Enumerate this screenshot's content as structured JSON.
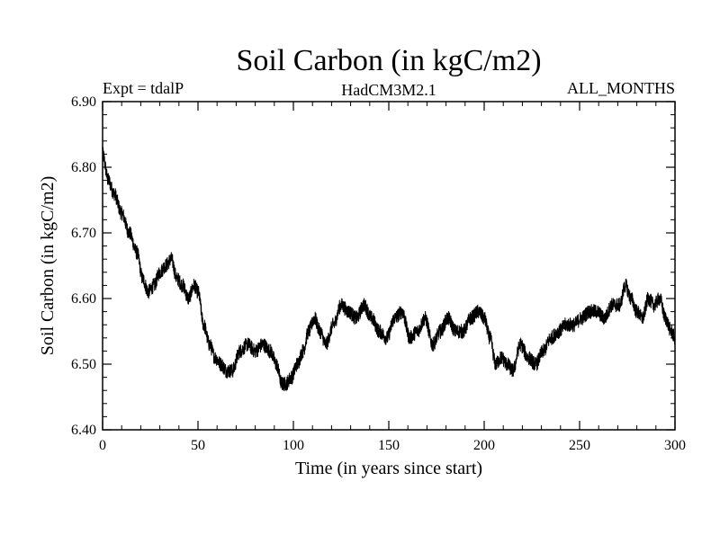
{
  "chart_data": {
    "type": "line",
    "title": "Soil Carbon (in kgC/m2)",
    "subtitle_left": "Expt = tdalP",
    "subtitle_center": "HadCM3M2.1",
    "subtitle_right": "ALL_MONTHS",
    "xlabel": "Time (in years since start)",
    "ylabel": "Soil Carbon (in kgC/m2)",
    "xlim": [
      0,
      300
    ],
    "ylim": [
      6.4,
      6.9
    ],
    "x_ticks": [
      "0",
      "50",
      "100",
      "150",
      "200",
      "250",
      "300"
    ],
    "y_ticks": [
      "6.40",
      "6.50",
      "6.60",
      "6.70",
      "6.80",
      "6.90"
    ],
    "grid": false,
    "series": [
      {
        "name": "Soil Carbon",
        "color": "#000000",
        "x": [
          0,
          3,
          6,
          10,
          14,
          18,
          21,
          24,
          27,
          30,
          33,
          36,
          39,
          42,
          45,
          48,
          50,
          53,
          56,
          59,
          62,
          65,
          68,
          72,
          76,
          80,
          84,
          88,
          91,
          94,
          96,
          99,
          102,
          105,
          108,
          111,
          114,
          117,
          121,
          125,
          129,
          133,
          137,
          141,
          145,
          149,
          153,
          157,
          161,
          165,
          169,
          173,
          177,
          181,
          185,
          189,
          193,
          197,
          200,
          203,
          206,
          209,
          212,
          215,
          219,
          223,
          227,
          231,
          235,
          239,
          243,
          247,
          251,
          255,
          259,
          263,
          267,
          271,
          274,
          277,
          280,
          283,
          286,
          289,
          292,
          295,
          298,
          300
        ],
        "values": [
          6.82,
          6.78,
          6.76,
          6.73,
          6.7,
          6.67,
          6.63,
          6.61,
          6.62,
          6.64,
          6.65,
          6.66,
          6.63,
          6.62,
          6.6,
          6.62,
          6.61,
          6.56,
          6.53,
          6.51,
          6.5,
          6.49,
          6.49,
          6.52,
          6.53,
          6.52,
          6.53,
          6.52,
          6.5,
          6.47,
          6.47,
          6.48,
          6.5,
          6.52,
          6.55,
          6.57,
          6.55,
          6.53,
          6.56,
          6.59,
          6.58,
          6.57,
          6.59,
          6.57,
          6.55,
          6.54,
          6.57,
          6.58,
          6.54,
          6.55,
          6.57,
          6.53,
          6.55,
          6.57,
          6.55,
          6.55,
          6.57,
          6.58,
          6.57,
          6.54,
          6.5,
          6.51,
          6.5,
          6.49,
          6.53,
          6.51,
          6.5,
          6.52,
          6.54,
          6.55,
          6.56,
          6.56,
          6.57,
          6.58,
          6.58,
          6.57,
          6.59,
          6.59,
          6.62,
          6.6,
          6.58,
          6.57,
          6.6,
          6.59,
          6.6,
          6.57,
          6.55,
          6.54
        ]
      }
    ]
  }
}
